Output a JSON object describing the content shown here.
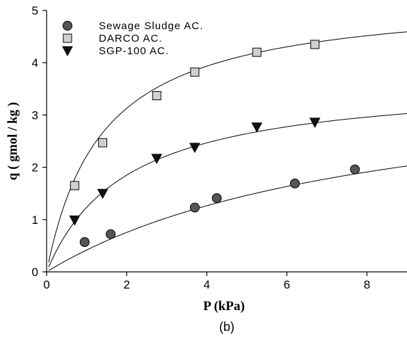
{
  "chart_data": {
    "type": "scatter",
    "xlabel": "P (kPa)",
    "ylabel": "q ( gmol / kg )",
    "caption": "(b)",
    "xlim": [
      0,
      9
    ],
    "ylim": [
      0,
      5
    ],
    "xticks": [
      0,
      2,
      4,
      6,
      8
    ],
    "yticks": [
      0,
      1,
      2,
      3,
      4,
      5
    ],
    "grid": false,
    "legend_position": "top-left",
    "series": [
      {
        "name": "Sewage Sludge AC.",
        "marker": "circle",
        "color": "#555555",
        "x": [
          0.95,
          1.6,
          3.7,
          4.25,
          6.2,
          7.7
        ],
        "y": [
          0.57,
          0.72,
          1.23,
          1.41,
          1.69,
          1.96
        ],
        "fit": {
          "qmax": 3.9,
          "b": 0.12
        }
      },
      {
        "name": "DARCO AC.",
        "marker": "square",
        "color": "#d0d0d0",
        "x": [
          0.7,
          1.4,
          2.75,
          3.7,
          5.25,
          6.7
        ],
        "y": [
          1.65,
          2.47,
          3.37,
          3.82,
          4.2,
          4.35
        ],
        "fit": {
          "qmax": 5.3,
          "b": 0.72
        }
      },
      {
        "name": "SGP-100 AC.",
        "marker": "triangle-down",
        "color": "#111111",
        "x": [
          0.7,
          1.4,
          2.75,
          3.7,
          5.25,
          6.7
        ],
        "y": [
          0.99,
          1.5,
          2.17,
          2.38,
          2.77,
          2.86
        ],
        "fit": {
          "qmax": 3.7,
          "b": 0.5
        }
      }
    ]
  }
}
